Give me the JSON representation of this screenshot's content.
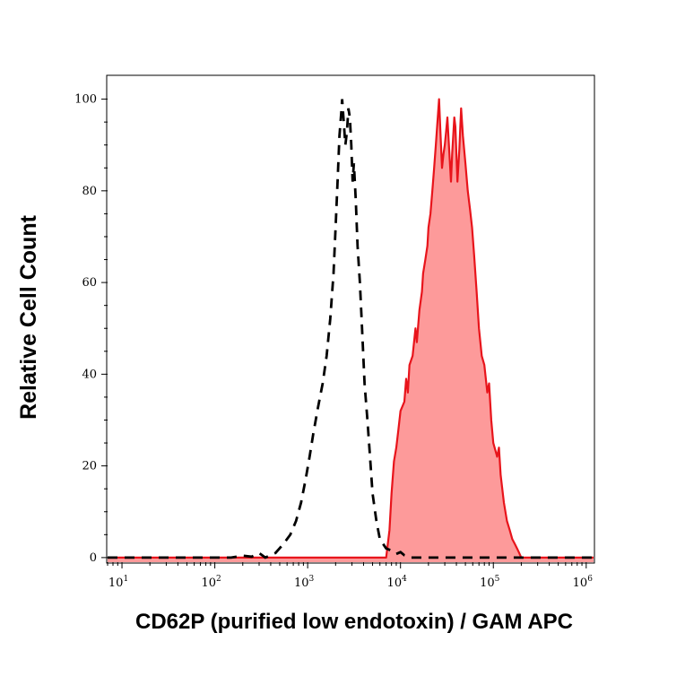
{
  "chart_data": {
    "type": "area",
    "xscale": "log",
    "xlim": [
      7,
      1200000
    ],
    "ylim": [
      -1,
      105
    ],
    "xlabel": "CD62P (purified low endotoxin) / GAM APC",
    "ylabel": "Relative Cell Count",
    "xticks": [
      {
        "base": "10",
        "exp": "1",
        "value": 10
      },
      {
        "base": "10",
        "exp": "2",
        "value": 100
      },
      {
        "base": "10",
        "exp": "3",
        "value": 1000
      },
      {
        "base": "10",
        "exp": "4",
        "value": 10000
      },
      {
        "base": "10",
        "exp": "5",
        "value": 100000
      },
      {
        "base": "10",
        "exp": "6",
        "value": 1000000
      }
    ],
    "yticks": [
      "0",
      "20",
      "40",
      "60",
      "80",
      "100"
    ],
    "grid": false,
    "colors": {
      "stained_line": "#e8141b",
      "stained_fill": "#fd9a9a",
      "control_line": "#000000"
    },
    "series": [
      {
        "style": "dashed",
        "points": [
          [
            7,
            0
          ],
          [
            150,
            0
          ],
          [
            200,
            0.4
          ],
          [
            250,
            0.2
          ],
          [
            300,
            1
          ],
          [
            350,
            0
          ],
          [
            450,
            1
          ],
          [
            550,
            3
          ],
          [
            650,
            5
          ],
          [
            750,
            8
          ],
          [
            850,
            12
          ],
          [
            950,
            17
          ],
          [
            1050,
            22
          ],
          [
            1150,
            27
          ],
          [
            1300,
            33
          ],
          [
            1450,
            38
          ],
          [
            1600,
            44
          ],
          [
            1750,
            52
          ],
          [
            1900,
            62
          ],
          [
            2000,
            72
          ],
          [
            2100,
            82
          ],
          [
            2200,
            92
          ],
          [
            2300,
            97
          ],
          [
            2350,
            100
          ],
          [
            2450,
            95
          ],
          [
            2550,
            90
          ],
          [
            2650,
            93
          ],
          [
            2750,
            98
          ],
          [
            2850,
            96
          ],
          [
            2950,
            90
          ],
          [
            3050,
            82
          ],
          [
            3150,
            86
          ],
          [
            3300,
            78
          ],
          [
            3450,
            68
          ],
          [
            3650,
            60
          ],
          [
            3850,
            50
          ],
          [
            4100,
            38
          ],
          [
            4400,
            30
          ],
          [
            4700,
            22
          ],
          [
            5000,
            14
          ],
          [
            5500,
            8
          ],
          [
            6000,
            4
          ],
          [
            7000,
            2
          ],
          [
            8000,
            1.5
          ],
          [
            9000,
            0.8
          ],
          [
            10000,
            1.2
          ],
          [
            11000,
            0.5
          ],
          [
            13000,
            0
          ],
          [
            1200000,
            0
          ]
        ]
      },
      {
        "style": "solid-filled",
        "points": [
          [
            7,
            0
          ],
          [
            7000,
            0
          ],
          [
            7600,
            6
          ],
          [
            8000,
            14
          ],
          [
            8500,
            21
          ],
          [
            9000,
            24
          ],
          [
            9500,
            28
          ],
          [
            10000,
            32
          ],
          [
            11000,
            34
          ],
          [
            11500,
            39
          ],
          [
            12000,
            36
          ],
          [
            12500,
            42
          ],
          [
            13500,
            44
          ],
          [
            14500,
            50
          ],
          [
            15000,
            47
          ],
          [
            16000,
            54
          ],
          [
            17000,
            58
          ],
          [
            17500,
            62
          ],
          [
            18500,
            65
          ],
          [
            19500,
            68
          ],
          [
            20000,
            72
          ],
          [
            21000,
            75
          ],
          [
            22000,
            80
          ],
          [
            23000,
            85
          ],
          [
            24000,
            90
          ],
          [
            25000,
            95
          ],
          [
            26000,
            100
          ],
          [
            27000,
            92
          ],
          [
            28000,
            85
          ],
          [
            29000,
            88
          ],
          [
            30000,
            90
          ],
          [
            31000,
            93
          ],
          [
            32000,
            96
          ],
          [
            33000,
            91
          ],
          [
            35000,
            82
          ],
          [
            36000,
            88
          ],
          [
            38000,
            96
          ],
          [
            39000,
            94
          ],
          [
            41000,
            82
          ],
          [
            43000,
            89
          ],
          [
            45000,
            98
          ],
          [
            47000,
            92
          ],
          [
            50000,
            86
          ],
          [
            53000,
            80
          ],
          [
            56000,
            76
          ],
          [
            59000,
            72
          ],
          [
            62000,
            66
          ],
          [
            66000,
            58
          ],
          [
            70000,
            50
          ],
          [
            75000,
            44
          ],
          [
            80000,
            42
          ],
          [
            86000,
            36
          ],
          [
            90000,
            38
          ],
          [
            95000,
            30
          ],
          [
            100000,
            25
          ],
          [
            110000,
            22
          ],
          [
            115000,
            24
          ],
          [
            120000,
            18
          ],
          [
            130000,
            12
          ],
          [
            140000,
            8
          ],
          [
            150000,
            6
          ],
          [
            160000,
            4
          ],
          [
            170000,
            3
          ],
          [
            180000,
            2
          ],
          [
            190000,
            1
          ],
          [
            200000,
            0
          ],
          [
            1200000,
            0
          ]
        ]
      }
    ]
  }
}
